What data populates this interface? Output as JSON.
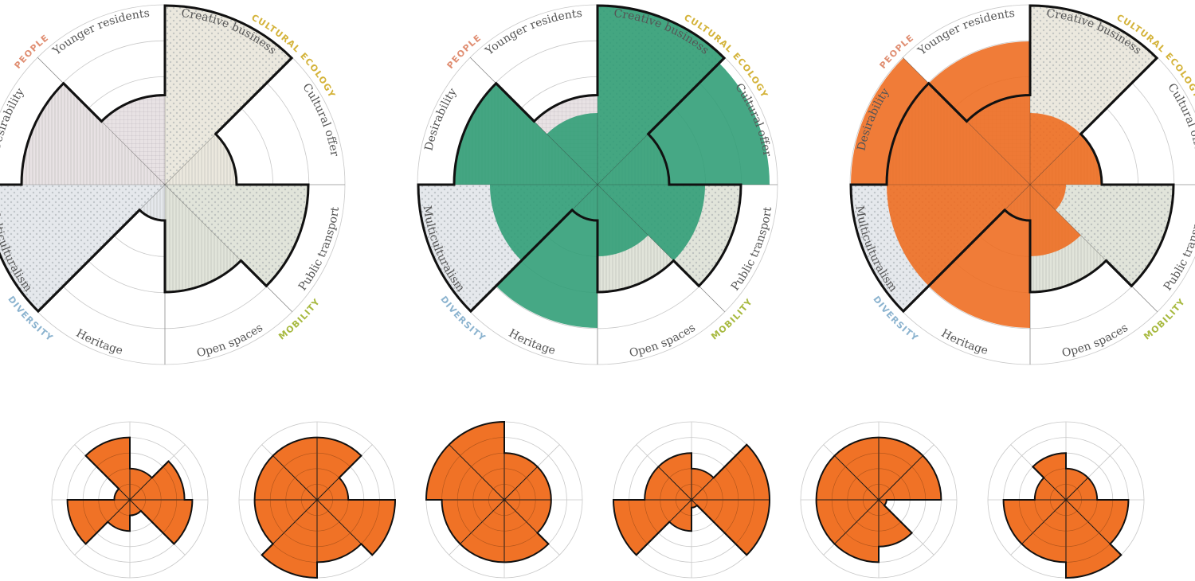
{
  "chart_data": {
    "type": "polar-area",
    "scale_max": 5,
    "categories": [
      "Creative business",
      "Cultural offer",
      "Public transport",
      "Open spaces",
      "Heritage",
      "Multiculturalism",
      "Desirability",
      "Younger residents"
    ],
    "groups": [
      {
        "label": "CULTURAL ECOLOGY",
        "color": "#d4b33a",
        "categories": [
          "Creative business",
          "Cultural offer"
        ]
      },
      {
        "label": "MOBILITY",
        "color": "#a7b93f",
        "categories": [
          "Public transport",
          "Open spaces"
        ]
      },
      {
        "label": "DIVERSITY",
        "color": "#8bb3cf",
        "categories": [
          "Heritage",
          "Multiculturalism"
        ]
      },
      {
        "label": "PEOPLE",
        "color": "#e08e72",
        "categories": [
          "Desirability",
          "Younger residents"
        ]
      }
    ],
    "baseline": {
      "name": "",
      "values": [
        5,
        2,
        4,
        3,
        1,
        5,
        4,
        2.5
      ],
      "fills": [
        "#ebe8de",
        "#ebe8de",
        "#e1e4da",
        "#e1e4da",
        "#e5e8ec",
        "#e5e8ec",
        "#e8e2e4",
        "#e8e2e4"
      ]
    },
    "large_charts": [
      {
        "overlay": null
      },
      {
        "overlay": {
          "color": "#2c9c74",
          "values": [
            5,
            4.8,
            3,
            2,
            4,
            3,
            4,
            2
          ]
        }
      },
      {
        "overlay": {
          "color": "#ee6a1c",
          "values": [
            2,
            2,
            1,
            2,
            4,
            4,
            5,
            4
          ]
        }
      }
    ],
    "small_multiples": {
      "color": "#f07226",
      "charts": [
        [
          2,
          3.5,
          4,
          1,
          2,
          4,
          1,
          4
        ],
        [
          4,
          2,
          5,
          4,
          5,
          4,
          4,
          4
        ],
        [
          3,
          3,
          3,
          4,
          4,
          4,
          5,
          5
        ],
        [
          2,
          5,
          5,
          0.5,
          2,
          5,
          3,
          3
        ],
        [
          4,
          4,
          0.5,
          3,
          4,
          4,
          4,
          4
        ],
        [
          2,
          2,
          4,
          5,
          4,
          4,
          2,
          3
        ]
      ]
    }
  }
}
